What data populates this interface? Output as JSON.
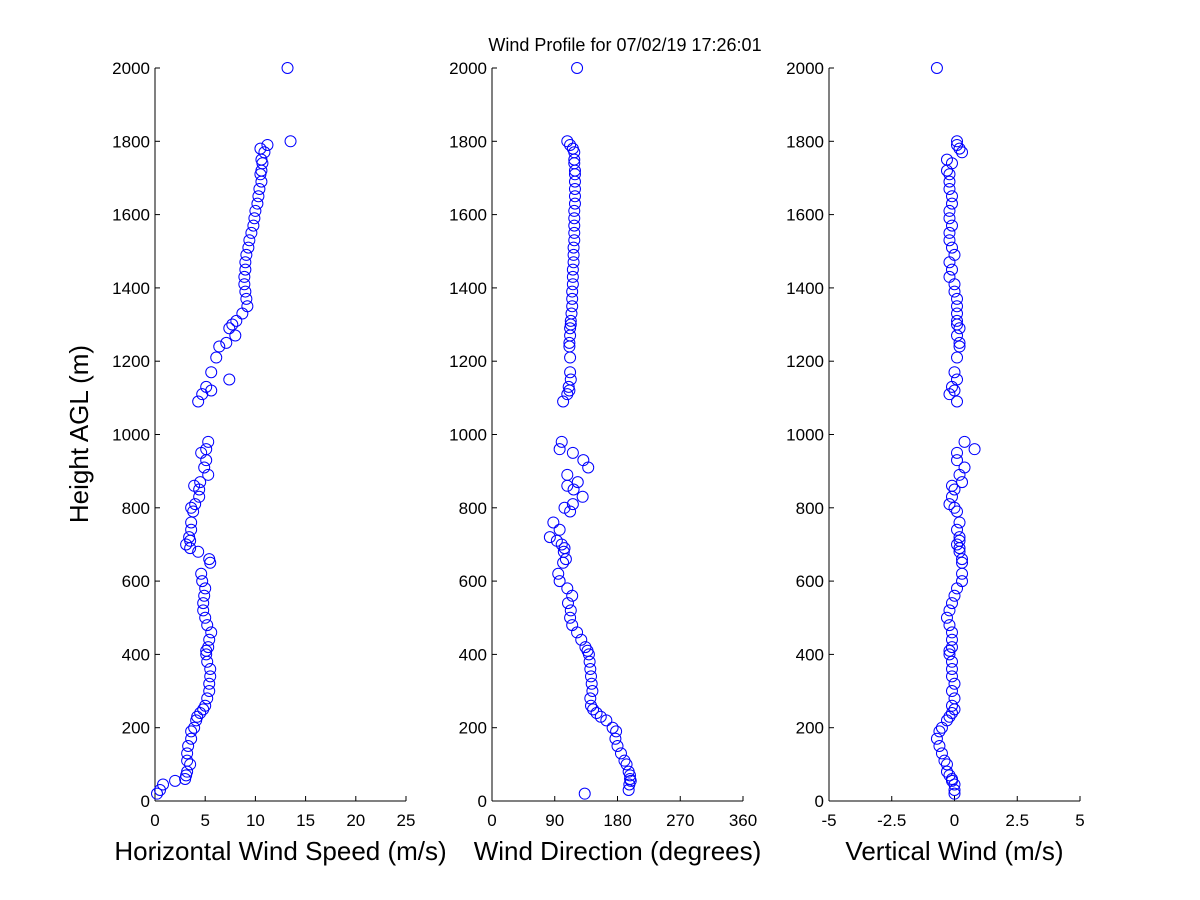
{
  "chart_data": [
    {
      "type": "scatter",
      "title": "Wind Profile for  07/02/19 17:26:01",
      "xlabel": "Horizontal Wind Speed (m/s)",
      "ylabel": "Height AGL (m)",
      "xlim": [
        0,
        25
      ],
      "ylim": [
        0,
        2000
      ],
      "xticks": [
        "0",
        "5",
        "10",
        "15",
        "20",
        "25"
      ],
      "yticks": [
        "0",
        "200",
        "400",
        "600",
        "800",
        "1000",
        "1200",
        "1400",
        "1600",
        "1800",
        "2000"
      ],
      "color": "#0000ff",
      "series": [
        {
          "x": [
            13.2,
            13.5,
            11.2,
            10.5,
            10.9,
            10.6,
            10.7,
            10.6,
            10.5,
            10.6,
            10.4,
            10.3,
            10.2,
            10.0,
            9.9,
            9.8,
            9.6,
            9.4,
            9.3,
            9.1,
            9.0,
            9.0,
            8.9,
            8.9,
            9.0,
            9.1,
            9.2,
            8.7,
            8.1,
            7.7,
            7.4,
            8.0,
            7.1,
            6.4,
            6.1,
            7.4,
            5.6,
            5.1,
            5.6,
            4.7,
            4.3,
            5.1,
            5.3,
            4.6,
            5.1,
            4.9,
            5.3,
            4.5,
            4.4,
            3.9,
            4.4,
            4.0,
            3.6,
            3.8,
            3.6,
            3.6,
            3.4,
            3.5,
            3.1,
            3.5,
            4.3,
            5.4,
            5.5,
            4.6,
            4.7,
            5.0,
            4.9,
            4.8,
            4.8,
            5.0,
            5.2,
            5.6,
            5.4,
            5.3,
            5.1,
            5.1,
            5.2,
            5.5,
            5.5,
            5.4,
            5.4,
            5.2,
            5.0,
            4.8,
            4.5,
            4.2,
            4.1,
            3.9,
            3.6,
            3.6,
            3.3,
            3.2,
            3.2,
            3.5,
            3.2,
            3.1,
            3.0,
            2.0,
            0.8,
            0.5,
            0.2
          ],
          "y": [
            2000,
            1800,
            1790,
            1780,
            1770,
            1750,
            1740,
            1720,
            1710,
            1690,
            1670,
            1650,
            1630,
            1610,
            1590,
            1570,
            1550,
            1530,
            1510,
            1490,
            1470,
            1450,
            1430,
            1410,
            1390,
            1370,
            1350,
            1330,
            1310,
            1300,
            1290,
            1270,
            1250,
            1240,
            1210,
            1150,
            1170,
            1130,
            1120,
            1110,
            1090,
            960,
            980,
            950,
            930,
            910,
            890,
            870,
            850,
            860,
            830,
            810,
            800,
            790,
            760,
            740,
            720,
            710,
            700,
            690,
            680,
            660,
            650,
            620,
            600,
            580,
            560,
            540,
            520,
            500,
            480,
            460,
            440,
            420,
            410,
            400,
            380,
            360,
            340,
            320,
            300,
            280,
            260,
            250,
            240,
            230,
            220,
            200,
            190,
            170,
            150,
            130,
            110,
            100,
            80,
            70,
            60,
            55,
            45,
            30,
            20
          ]
        }
      ]
    },
    {
      "type": "scatter",
      "xlabel": "Wind Direction (degrees)",
      "xlim": [
        0,
        360
      ],
      "ylim": [
        0,
        2000
      ],
      "xticks": [
        "0",
        "90",
        "180",
        "270",
        "360"
      ],
      "yticks": [
        "0",
        "200",
        "400",
        "600",
        "800",
        "1000",
        "1200",
        "1400",
        "1600",
        "1800",
        "2000"
      ],
      "color": "#0000ff",
      "series": [
        {
          "x": [
            122,
            108,
            112,
            116,
            118,
            118,
            118,
            119,
            119,
            119,
            119,
            119,
            119,
            118,
            118,
            118,
            118,
            118,
            117,
            117,
            117,
            116,
            116,
            116,
            115,
            115,
            115,
            114,
            113,
            113,
            112,
            112,
            111,
            111,
            112,
            113,
            112,
            110,
            111,
            108,
            102,
            97,
            100,
            116,
            131,
            138,
            108,
            123,
            117,
            108,
            130,
            116,
            104,
            112,
            88,
            97,
            83,
            93,
            100,
            104,
            103,
            106,
            102,
            95,
            97,
            108,
            115,
            109,
            113,
            112,
            115,
            122,
            128,
            134,
            137,
            139,
            140,
            141,
            142,
            143,
            144,
            141,
            142,
            145,
            150,
            156,
            164,
            173,
            178,
            177,
            180,
            185,
            190,
            193,
            196,
            198,
            198,
            199,
            197,
            196,
            133
          ],
          "y": [
            2000,
            1800,
            1790,
            1780,
            1770,
            1750,
            1740,
            1720,
            1710,
            1690,
            1670,
            1650,
            1630,
            1610,
            1590,
            1570,
            1550,
            1530,
            1510,
            1490,
            1470,
            1450,
            1430,
            1410,
            1390,
            1370,
            1350,
            1330,
            1310,
            1300,
            1290,
            1270,
            1250,
            1240,
            1210,
            1150,
            1170,
            1130,
            1120,
            1110,
            1090,
            960,
            980,
            950,
            930,
            910,
            890,
            870,
            850,
            860,
            830,
            810,
            800,
            790,
            760,
            740,
            720,
            710,
            700,
            690,
            680,
            660,
            650,
            620,
            600,
            580,
            560,
            540,
            520,
            500,
            480,
            460,
            440,
            420,
            410,
            400,
            380,
            360,
            340,
            320,
            300,
            280,
            260,
            250,
            240,
            230,
            220,
            200,
            190,
            170,
            150,
            130,
            110,
            100,
            80,
            70,
            60,
            55,
            45,
            30,
            20
          ]
        }
      ]
    },
    {
      "type": "scatter",
      "xlabel": "Vertical Wind (m/s)",
      "xlim": [
        -5,
        5
      ],
      "ylim": [
        0,
        2000
      ],
      "xticks": [
        "-5",
        "-2.5",
        "0",
        "2.5",
        "5"
      ],
      "yticks": [
        "0",
        "200",
        "400",
        "600",
        "800",
        "1000",
        "1200",
        "1400",
        "1600",
        "1800",
        "2000"
      ],
      "color": "#0000ff",
      "series": [
        {
          "x": [
            -0.7,
            0.1,
            0.1,
            0.2,
            0.3,
            -0.3,
            -0.1,
            -0.3,
            -0.2,
            -0.2,
            -0.2,
            -0.1,
            -0.1,
            -0.2,
            -0.2,
            -0.1,
            -0.2,
            -0.2,
            -0.1,
            0.0,
            -0.2,
            -0.1,
            -0.2,
            0.0,
            0.0,
            0.1,
            0.1,
            0.1,
            0.1,
            0.1,
            0.2,
            0.1,
            0.2,
            0.2,
            0.1,
            0.1,
            0.0,
            -0.1,
            0.0,
            -0.2,
            0.1,
            0.8,
            0.4,
            0.1,
            0.1,
            0.4,
            0.2,
            0.3,
            0.0,
            -0.1,
            -0.1,
            -0.2,
            0.0,
            0.1,
            0.2,
            0.1,
            0.2,
            0.2,
            0.1,
            0.2,
            0.2,
            0.3,
            0.3,
            0.3,
            0.3,
            0.1,
            0.0,
            -0.1,
            -0.2,
            -0.3,
            -0.2,
            -0.1,
            -0.1,
            -0.1,
            -0.2,
            -0.2,
            -0.1,
            -0.1,
            -0.1,
            0.0,
            -0.1,
            0.0,
            -0.1,
            0.0,
            -0.1,
            -0.2,
            -0.3,
            -0.5,
            -0.6,
            -0.7,
            -0.6,
            -0.5,
            -0.4,
            -0.3,
            -0.3,
            -0.2,
            -0.1,
            -0.1,
            0.0,
            0.0,
            0.0
          ],
          "y": [
            2000,
            1800,
            1790,
            1780,
            1770,
            1750,
            1740,
            1720,
            1710,
            1690,
            1670,
            1650,
            1630,
            1610,
            1590,
            1570,
            1550,
            1530,
            1510,
            1490,
            1470,
            1450,
            1430,
            1410,
            1390,
            1370,
            1350,
            1330,
            1310,
            1300,
            1290,
            1270,
            1250,
            1240,
            1210,
            1150,
            1170,
            1130,
            1120,
            1110,
            1090,
            960,
            980,
            950,
            930,
            910,
            890,
            870,
            850,
            860,
            830,
            810,
            800,
            790,
            760,
            740,
            720,
            710,
            700,
            690,
            680,
            660,
            650,
            620,
            600,
            580,
            560,
            540,
            520,
            500,
            480,
            460,
            440,
            420,
            410,
            400,
            380,
            360,
            340,
            320,
            300,
            280,
            260,
            250,
            240,
            230,
            220,
            200,
            190,
            170,
            150,
            130,
            110,
            100,
            80,
            70,
            60,
            55,
            45,
            30,
            20
          ]
        }
      ]
    }
  ]
}
